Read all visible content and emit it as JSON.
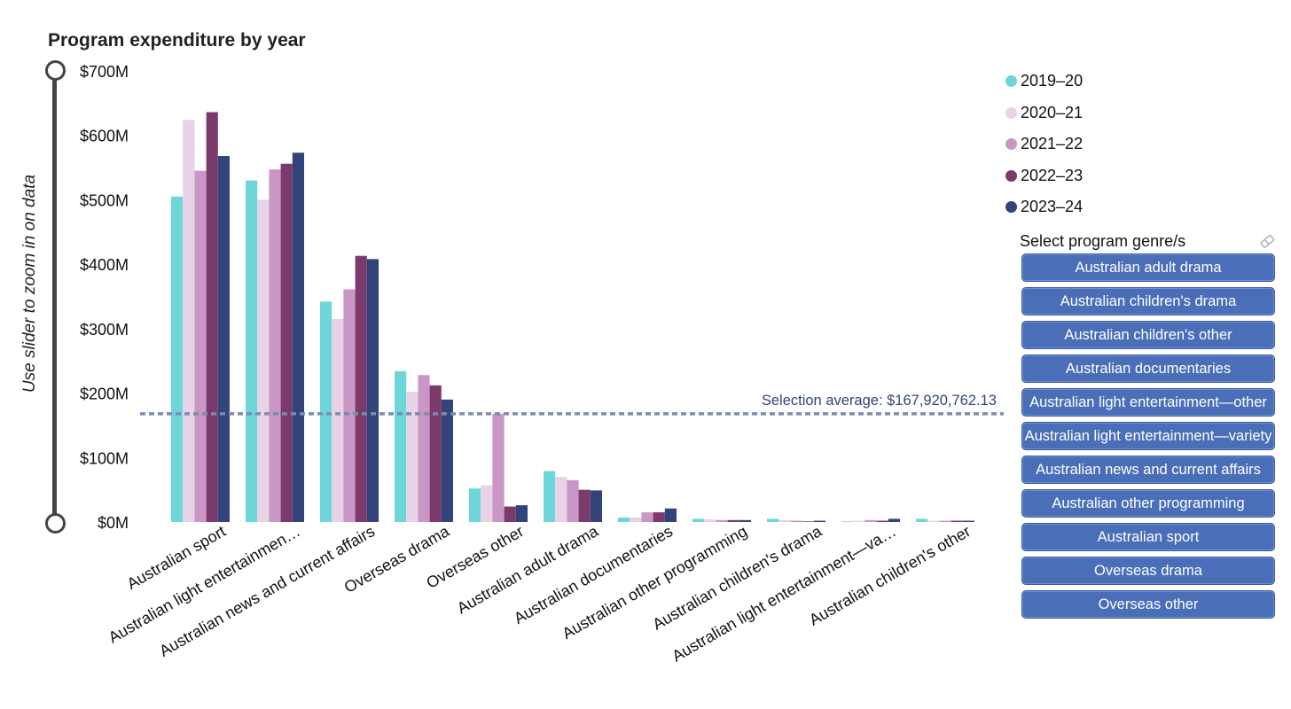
{
  "chart_data": {
    "type": "bar",
    "title": "Program expenditure by year",
    "categories": [
      "Australian sport",
      "Australian light entertainmen…",
      "Australian news and current affairs",
      "Overseas drama",
      "Overseas other",
      "Australian adult drama",
      "Australian documentaries",
      "Australian other programming",
      "Australian children's drama",
      "Australian light entertainment—va…",
      "Australian children's other"
    ],
    "series": [
      {
        "name": "2019–20",
        "color": "#6dd6d9",
        "values": [
          505,
          530,
          342,
          234,
          52,
          79,
          7,
          5,
          5,
          1,
          5
        ]
      },
      {
        "name": "2020–21",
        "color": "#e8d3e6",
        "values": [
          624,
          500,
          315,
          202,
          57,
          70,
          7,
          4,
          3,
          2,
          2
        ]
      },
      {
        "name": "2021–22",
        "color": "#c996c5",
        "values": [
          545,
          547,
          361,
          228,
          168,
          65,
          15,
          3,
          2,
          3,
          2
        ]
      },
      {
        "name": "2022–23",
        "color": "#7b3a6c",
        "values": [
          636,
          556,
          413,
          212,
          24,
          50,
          15,
          3,
          1,
          2,
          2
        ]
      },
      {
        "name": "2023–24",
        "color": "#33447a",
        "values": [
          568,
          573,
          408,
          190,
          26,
          49,
          21,
          3,
          2,
          5,
          2
        ]
      }
    ],
    "ylim": [
      0,
      700
    ],
    "ytick_labels": [
      "$0M",
      "$100M",
      "$200M",
      "$300M",
      "$400M",
      "$500M",
      "$600M",
      "$700M"
    ],
    "reference_line": {
      "value": 167.92076213,
      "label": "Selection average: $167,920,762.13",
      "color": "#7b8cb0"
    },
    "grid": false,
    "legend_position": "top-right"
  },
  "slider": {
    "label": "Use slider to zoom in on data"
  },
  "filter": {
    "label": "Select program genre/s",
    "clear_icon": "eraser-icon",
    "options": [
      "Australian adult drama",
      "Australian children's drama",
      "Australian children's other",
      "Australian documentaries",
      "Australian light entertainment—other",
      "Australian light entertainment—variety",
      "Australian news and current affairs",
      "Australian other programming",
      "Australian sport",
      "Overseas drama",
      "Overseas other"
    ],
    "button_color": "#4a6eb8"
  }
}
